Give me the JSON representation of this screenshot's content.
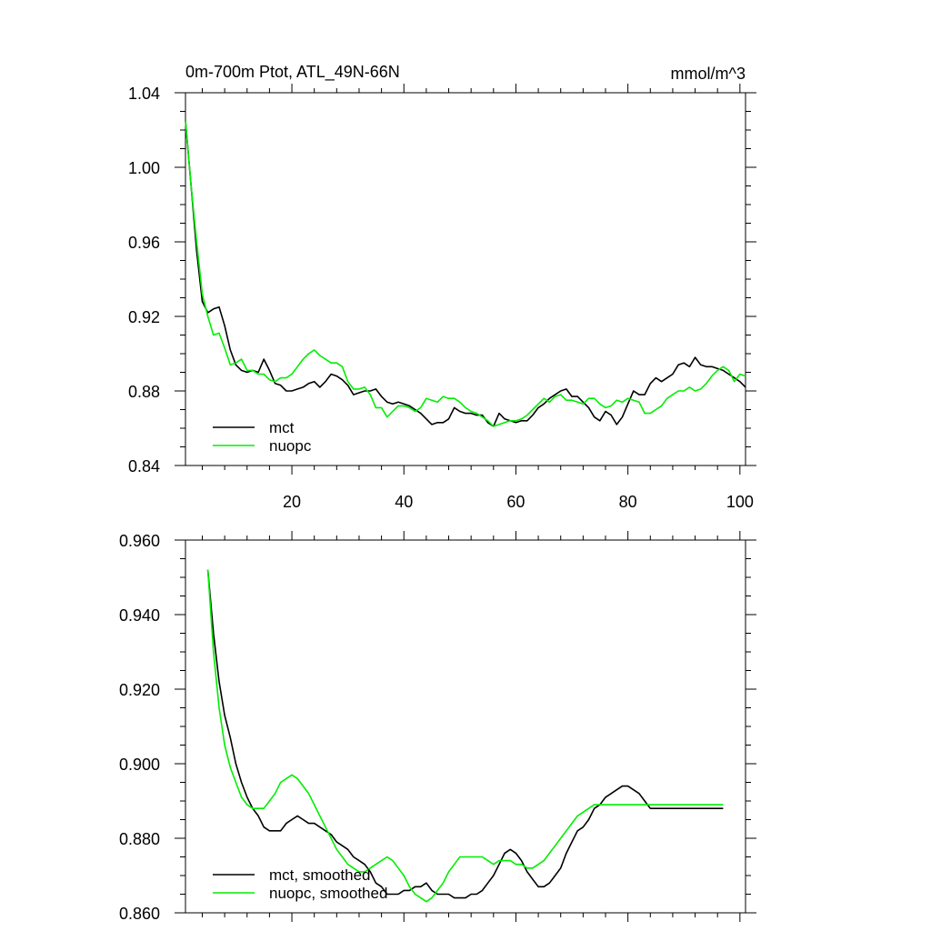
{
  "chart_data": [
    {
      "type": "line",
      "title": "0m-700m Ptot, ATL_49N-66N",
      "units": "mmol/m^3",
      "xlabel": "",
      "ylabel": "",
      "xlim": [
        1,
        101
      ],
      "ylim": [
        0.84,
        1.04
      ],
      "xticks": [
        20,
        40,
        60,
        80,
        100
      ],
      "xtick_labels": [
        "20",
        "40",
        "60",
        "80",
        "100"
      ],
      "yticks": [
        0.84,
        0.88,
        0.92,
        0.96,
        1.0,
        1.04
      ],
      "ytick_labels": [
        "0.84",
        "0.88",
        "0.92",
        "0.96",
        "1.00",
        "1.04"
      ],
      "legend": "bottom-left",
      "series": [
        {
          "name": "mct",
          "color": "#000000",
          "x": [
            1,
            2,
            3,
            4,
            5,
            6,
            7,
            8,
            9,
            10,
            11,
            12,
            13,
            14,
            15,
            16,
            17,
            18,
            19,
            20,
            21,
            22,
            23,
            24,
            25,
            26,
            27,
            28,
            29,
            30,
            31,
            32,
            33,
            34,
            35,
            36,
            37,
            38,
            39,
            40,
            41,
            42,
            43,
            44,
            45,
            46,
            47,
            48,
            49,
            50,
            51,
            52,
            53,
            54,
            55,
            56,
            57,
            58,
            59,
            60,
            61,
            62,
            63,
            64,
            65,
            66,
            67,
            68,
            69,
            70,
            71,
            72,
            73,
            74,
            75,
            76,
            77,
            78,
            79,
            80,
            81,
            82,
            83,
            84,
            85,
            86,
            87,
            88,
            89,
            90,
            91,
            92,
            93,
            94,
            95,
            96,
            97,
            98,
            99,
            100,
            101
          ],
          "values": [
            1.025,
            0.99,
            0.955,
            0.928,
            0.922,
            0.924,
            0.925,
            0.915,
            0.902,
            0.894,
            0.891,
            0.89,
            0.891,
            0.89,
            0.897,
            0.891,
            0.884,
            0.883,
            0.88,
            0.88,
            0.881,
            0.882,
            0.884,
            0.885,
            0.882,
            0.885,
            0.889,
            0.888,
            0.886,
            0.883,
            0.878,
            0.879,
            0.88,
            0.88,
            0.881,
            0.877,
            0.874,
            0.873,
            0.874,
            0.873,
            0.872,
            0.87,
            0.868,
            0.865,
            0.862,
            0.863,
            0.863,
            0.865,
            0.871,
            0.869,
            0.868,
            0.868,
            0.867,
            0.867,
            0.863,
            0.861,
            0.868,
            0.865,
            0.864,
            0.863,
            0.864,
            0.864,
            0.867,
            0.871,
            0.873,
            0.876,
            0.878,
            0.88,
            0.881,
            0.877,
            0.877,
            0.874,
            0.871,
            0.866,
            0.864,
            0.869,
            0.867,
            0.862,
            0.866,
            0.873,
            0.88,
            0.878,
            0.878,
            0.884,
            0.887,
            0.885,
            0.887,
            0.889,
            0.894,
            0.895,
            0.893,
            0.898,
            0.894,
            0.893,
            0.893,
            0.892,
            0.891,
            0.889,
            0.887,
            0.885,
            0.882
          ]
        },
        {
          "name": "nuopc",
          "color": "#00ee00",
          "x": [
            1,
            2,
            3,
            4,
            5,
            6,
            7,
            8,
            9,
            10,
            11,
            12,
            13,
            14,
            15,
            16,
            17,
            18,
            19,
            20,
            21,
            22,
            23,
            24,
            25,
            26,
            27,
            28,
            29,
            30,
            31,
            32,
            33,
            34,
            35,
            36,
            37,
            38,
            39,
            40,
            41,
            42,
            43,
            44,
            45,
            46,
            47,
            48,
            49,
            50,
            51,
            52,
            53,
            54,
            55,
            56,
            57,
            58,
            59,
            60,
            61,
            62,
            63,
            64,
            65,
            66,
            67,
            68,
            69,
            70,
            71,
            72,
            73,
            74,
            75,
            76,
            77,
            78,
            79,
            80,
            81,
            82,
            83,
            84,
            85,
            86,
            87,
            88,
            89,
            90,
            91,
            92,
            93,
            94,
            95,
            96,
            97,
            98,
            99,
            100,
            101
          ],
          "values": [
            1.025,
            0.99,
            0.96,
            0.932,
            0.92,
            0.91,
            0.911,
            0.903,
            0.894,
            0.895,
            0.897,
            0.891,
            0.891,
            0.889,
            0.889,
            0.886,
            0.885,
            0.887,
            0.887,
            0.889,
            0.893,
            0.897,
            0.9,
            0.902,
            0.899,
            0.897,
            0.895,
            0.895,
            0.893,
            0.885,
            0.881,
            0.881,
            0.882,
            0.878,
            0.871,
            0.871,
            0.866,
            0.869,
            0.872,
            0.872,
            0.871,
            0.869,
            0.871,
            0.876,
            0.875,
            0.874,
            0.877,
            0.876,
            0.876,
            0.874,
            0.871,
            0.869,
            0.868,
            0.866,
            0.864,
            0.861,
            0.862,
            0.863,
            0.864,
            0.864,
            0.865,
            0.867,
            0.87,
            0.873,
            0.876,
            0.874,
            0.877,
            0.878,
            0.875,
            0.875,
            0.874,
            0.873,
            0.876,
            0.876,
            0.873,
            0.871,
            0.872,
            0.875,
            0.874,
            0.876,
            0.875,
            0.874,
            0.868,
            0.868,
            0.87,
            0.872,
            0.876,
            0.878,
            0.88,
            0.88,
            0.882,
            0.88,
            0.881,
            0.884,
            0.888,
            0.891,
            0.893,
            0.891,
            0.885,
            0.889,
            0.888
          ]
        }
      ]
    },
    {
      "type": "line",
      "title": "",
      "xlabel": "",
      "ylabel": "",
      "xlim": [
        1,
        101
      ],
      "ylim": [
        0.86,
        0.96
      ],
      "xticks": [
        20,
        40,
        60,
        80,
        100
      ],
      "yticks": [
        0.86,
        0.88,
        0.9,
        0.92,
        0.94,
        0.96
      ],
      "ytick_labels": [
        "0.860",
        "0.880",
        "0.900",
        "0.920",
        "0.940",
        "0.960"
      ],
      "legend": "bottom-left",
      "series": [
        {
          "name": "mct, smoothed",
          "color": "#000000",
          "x": [
            5,
            6,
            7,
            8,
            9,
            10,
            11,
            12,
            13,
            14,
            15,
            16,
            17,
            18,
            19,
            20,
            21,
            22,
            23,
            24,
            25,
            26,
            27,
            28,
            29,
            30,
            31,
            32,
            33,
            34,
            35,
            36,
            37,
            38,
            39,
            40,
            41,
            42,
            43,
            44,
            45,
            46,
            47,
            48,
            49,
            50,
            51,
            52,
            53,
            54,
            55,
            56,
            57,
            58,
            59,
            60,
            61,
            62,
            63,
            64,
            65,
            66,
            67,
            68,
            69,
            70,
            71,
            72,
            73,
            74,
            75,
            76,
            77,
            78,
            79,
            80,
            81,
            82,
            83,
            84,
            85,
            86,
            87,
            88,
            89,
            90,
            91,
            92,
            93,
            94,
            95,
            96,
            97
          ],
          "values": [
            0.952,
            0.935,
            0.922,
            0.913,
            0.907,
            0.9,
            0.895,
            0.891,
            0.888,
            0.886,
            0.883,
            0.882,
            0.882,
            0.882,
            0.884,
            0.885,
            0.886,
            0.885,
            0.884,
            0.884,
            0.883,
            0.882,
            0.881,
            0.879,
            0.878,
            0.877,
            0.875,
            0.874,
            0.873,
            0.871,
            0.868,
            0.867,
            0.865,
            0.865,
            0.865,
            0.866,
            0.866,
            0.867,
            0.867,
            0.868,
            0.866,
            0.865,
            0.865,
            0.865,
            0.864,
            0.864,
            0.864,
            0.865,
            0.865,
            0.866,
            0.868,
            0.87,
            0.873,
            0.876,
            0.877,
            0.876,
            0.874,
            0.871,
            0.869,
            0.867,
            0.867,
            0.868,
            0.87,
            0.872,
            0.876,
            0.879,
            0.882,
            0.883,
            0.885,
            0.888,
            0.889,
            0.891,
            0.892,
            0.893,
            0.894,
            0.894,
            0.893,
            0.892,
            0.89,
            0.888,
            0.888,
            0.888,
            0.888,
            0.888,
            0.888,
            0.888,
            0.888,
            0.888,
            0.888,
            0.888,
            0.888,
            0.888,
            0.888
          ]
        },
        {
          "name": "nuopc, smoothed",
          "color": "#00ee00",
          "x": [
            5,
            6,
            7,
            8,
            9,
            10,
            11,
            12,
            13,
            14,
            15,
            16,
            17,
            18,
            19,
            20,
            21,
            22,
            23,
            24,
            25,
            26,
            27,
            28,
            29,
            30,
            31,
            32,
            33,
            34,
            35,
            36,
            37,
            38,
            39,
            40,
            41,
            42,
            43,
            44,
            45,
            46,
            47,
            48,
            49,
            50,
            51,
            52,
            53,
            54,
            55,
            56,
            57,
            58,
            59,
            60,
            61,
            62,
            63,
            64,
            65,
            66,
            67,
            68,
            69,
            70,
            71,
            72,
            73,
            74,
            75,
            76,
            77,
            78,
            79,
            80,
            81,
            82,
            83,
            84,
            85,
            86,
            87,
            88,
            89,
            90,
            91,
            92,
            93,
            94,
            95,
            96,
            97
          ],
          "values": [
            0.952,
            0.93,
            0.915,
            0.905,
            0.899,
            0.895,
            0.891,
            0.889,
            0.888,
            0.888,
            0.888,
            0.89,
            0.892,
            0.895,
            0.896,
            0.897,
            0.896,
            0.894,
            0.892,
            0.889,
            0.886,
            0.883,
            0.88,
            0.877,
            0.875,
            0.873,
            0.872,
            0.871,
            0.871,
            0.872,
            0.873,
            0.874,
            0.875,
            0.874,
            0.872,
            0.87,
            0.867,
            0.865,
            0.864,
            0.863,
            0.864,
            0.866,
            0.868,
            0.871,
            0.873,
            0.875,
            0.875,
            0.875,
            0.875,
            0.875,
            0.874,
            0.873,
            0.874,
            0.874,
            0.874,
            0.873,
            0.873,
            0.872,
            0.872,
            0.873,
            0.874,
            0.876,
            0.878,
            0.88,
            0.882,
            0.884,
            0.886,
            0.887,
            0.888,
            0.889,
            0.889,
            0.889,
            0.889,
            0.889,
            0.889,
            0.889,
            0.889,
            0.889,
            0.889,
            0.889,
            0.889,
            0.889,
            0.889,
            0.889,
            0.889,
            0.889,
            0.889,
            0.889,
            0.889,
            0.889,
            0.889,
            0.889,
            0.889
          ]
        }
      ]
    }
  ]
}
